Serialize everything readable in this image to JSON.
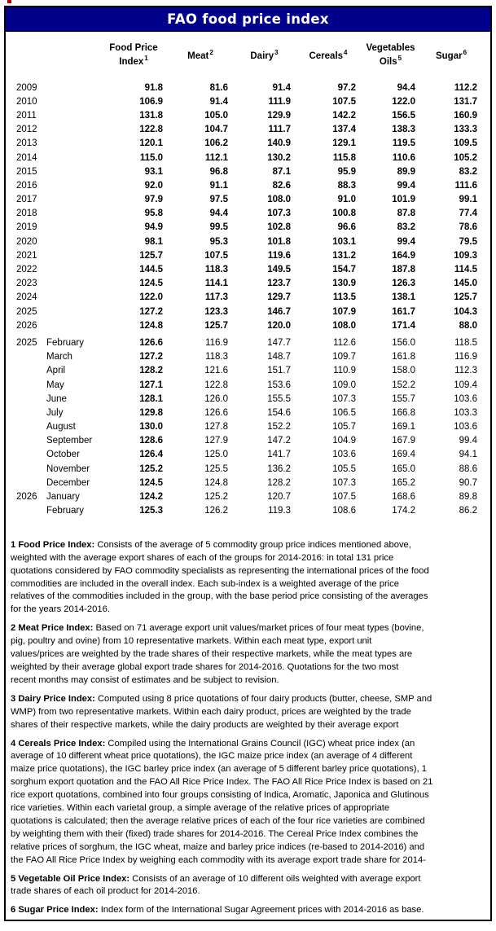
{
  "title": "FAO food price index",
  "accent_color": "#00008b",
  "table": {
    "columns": [
      {
        "label": "Food Price Index",
        "sup": "1"
      },
      {
        "label": "Meat",
        "sup": "2"
      },
      {
        "label": "Dairy",
        "sup": "3"
      },
      {
        "label": "Cereals",
        "sup": "4"
      },
      {
        "label": "Vegetables Oils",
        "sup": "5"
      },
      {
        "label": "Sugar",
        "sup": "6"
      }
    ],
    "annual_rows": [
      {
        "year": "2009",
        "values": [
          "91.8",
          "81.6",
          "91.4",
          "97.2",
          "94.4",
          "112.2"
        ]
      },
      {
        "year": "2010",
        "values": [
          "106.9",
          "91.4",
          "111.9",
          "107.5",
          "122.0",
          "131.7"
        ]
      },
      {
        "year": "2011",
        "values": [
          "131.8",
          "105.0",
          "129.9",
          "142.2",
          "156.5",
          "160.9"
        ]
      },
      {
        "year": "2012",
        "values": [
          "122.8",
          "104.7",
          "111.7",
          "137.4",
          "138.3",
          "133.3"
        ]
      },
      {
        "year": "2013",
        "values": [
          "120.1",
          "106.2",
          "140.9",
          "129.1",
          "119.5",
          "109.5"
        ]
      },
      {
        "year": "2014",
        "values": [
          "115.0",
          "112.1",
          "130.2",
          "115.8",
          "110.6",
          "105.2"
        ]
      },
      {
        "year": "2015",
        "values": [
          "93.1",
          "96.8",
          "87.1",
          "95.9",
          "89.9",
          "83.2"
        ]
      },
      {
        "year": "2016",
        "values": [
          "92.0",
          "91.1",
          "82.6",
          "88.3",
          "99.4",
          "111.6"
        ]
      },
      {
        "year": "2017",
        "values": [
          "97.9",
          "97.5",
          "108.0",
          "91.0",
          "101.9",
          "99.1"
        ]
      },
      {
        "year": "2018",
        "values": [
          "95.8",
          "94.4",
          "107.3",
          "100.8",
          "87.8",
          "77.4"
        ]
      },
      {
        "year": "2019",
        "values": [
          "94.9",
          "99.5",
          "102.8",
          "96.6",
          "83.2",
          "78.6"
        ]
      },
      {
        "year": "2020",
        "values": [
          "98.1",
          "95.3",
          "101.8",
          "103.1",
          "99.4",
          "79.5"
        ]
      },
      {
        "year": "2021",
        "values": [
          "125.7",
          "107.5",
          "119.6",
          "131.2",
          "164.9",
          "109.3"
        ]
      },
      {
        "year": "2022",
        "values": [
          "144.5",
          "118.3",
          "149.5",
          "154.7",
          "187.8",
          "114.5"
        ]
      },
      {
        "year": "2023",
        "values": [
          "124.5",
          "114.1",
          "123.7",
          "130.9",
          "126.3",
          "145.0"
        ]
      },
      {
        "year": "2024",
        "values": [
          "122.0",
          "117.3",
          "129.7",
          "113.5",
          "138.1",
          "125.7"
        ]
      },
      {
        "year": "2025",
        "values": [
          "127.2",
          "123.3",
          "146.7",
          "107.9",
          "161.7",
          "104.3"
        ]
      },
      {
        "year": "2026",
        "values": [
          "124.8",
          "125.7",
          "120.0",
          "108.0",
          "171.4",
          "88.0"
        ]
      }
    ],
    "monthly_rows": [
      {
        "year": "2025",
        "month": "February",
        "values": [
          "126.6",
          "116.9",
          "147.7",
          "112.6",
          "156.0",
          "118.5"
        ]
      },
      {
        "year": "",
        "month": "March",
        "values": [
          "127.2",
          "118.3",
          "148.7",
          "109.7",
          "161.8",
          "116.9"
        ]
      },
      {
        "year": "",
        "month": "April",
        "values": [
          "128.2",
          "121.6",
          "151.7",
          "110.9",
          "158.0",
          "112.3"
        ]
      },
      {
        "year": "",
        "month": "May",
        "values": [
          "127.1",
          "122.8",
          "153.6",
          "109.0",
          "152.2",
          "109.4"
        ]
      },
      {
        "year": "",
        "month": "June",
        "values": [
          "128.1",
          "126.0",
          "155.5",
          "107.3",
          "155.7",
          "103.6"
        ]
      },
      {
        "year": "",
        "month": "July",
        "values": [
          "129.8",
          "126.6",
          "154.6",
          "106.5",
          "166.8",
          "103.3"
        ]
      },
      {
        "year": "",
        "month": "August",
        "values": [
          "130.0",
          "127.8",
          "152.2",
          "105.7",
          "169.1",
          "103.6"
        ]
      },
      {
        "year": "",
        "month": "September",
        "values": [
          "128.6",
          "127.9",
          "147.2",
          "104.9",
          "167.9",
          "99.4"
        ]
      },
      {
        "year": "",
        "month": "October",
        "values": [
          "126.4",
          "125.0",
          "141.7",
          "103.6",
          "169.4",
          "94.1"
        ]
      },
      {
        "year": "",
        "month": "November",
        "values": [
          "125.2",
          "125.5",
          "136.2",
          "105.5",
          "165.0",
          "88.6"
        ]
      },
      {
        "year": "",
        "month": "December",
        "values": [
          "124.5",
          "124.8",
          "128.2",
          "107.3",
          "165.2",
          "90.7"
        ]
      },
      {
        "year": "2026",
        "month": "January",
        "values": [
          "124.2",
          "125.2",
          "120.7",
          "107.5",
          "168.6",
          "89.8"
        ]
      },
      {
        "year": "",
        "month": "February",
        "values": [
          "125.3",
          "126.2",
          "119.3",
          "108.6",
          "174.2",
          "86.2"
        ]
      }
    ]
  },
  "footnotes": [
    {
      "label": "1 Food Price Index:",
      "lines": [
        "Consists of the average of 5 commodity group price indices mentioned above,",
        "weighted with the average export shares of each of the groups for 2014-2016: in total 131 price",
        "quotations considered by FAO commodity specialists as representing the international prices of the food",
        "commodities are included in the overall index. Each sub-index is a weighted average of the price",
        "relatives of the commodities included in the group, with the base period price consisting of the averages",
        "for the years 2014-2016."
      ]
    },
    {
      "label": "2 Meat Price Index:",
      "lines": [
        "Based on 71 average export unit values/market prices of four meat types (bovine,",
        "pig, poultry and ovine) from 10 representative markets. Within each meat type, export unit",
        "values/prices are weighted by the trade shares of their respective markets, while the meat types are",
        "weighted by their average global export trade shares for 2014-2016. Quotations for the two most",
        "recent months may consist of estimates and be subject to revision."
      ]
    },
    {
      "label": "3 Dairy Price Index:",
      "lines": [
        "Computed using 8 price quotations of four dairy products (butter, cheese, SMP and",
        "WMP) from two representative markets. Within each dairy product, prices are weighted by the trade",
        "shares of their respective markets, while the dairy products are weighted by their average export"
      ]
    },
    {
      "label": "4 Cereals Price Index:",
      "lines": [
        "Compiled using the International Grains Council (IGC) wheat price index (an",
        "average of 10 different wheat price quotations), the IGC maize price index (an average of 4 different",
        "maize price quotations), the IGC barley price index (an average of 5 different barley price quotations), 1",
        "sorghum export quotation and the FAO All Rice Price Index. The FAO All Rice Price Index is based on 21",
        "rice export quotations, combined into four groups consisting of Indica, Aromatic, Japonica and Glutinous",
        "rice varieties. Within each varietal group, a simple average of the relative prices of appropriate",
        "quotations is calculated; then the average relative prices of each of the four rice varieties are combined",
        "by weighting them with their (fixed) trade shares for 2014-2016. The Cereal Price Index combines the",
        "relative prices of sorghum, the IGC wheat, maize and barley price indices (re-based to 2014-2016) and",
        "the FAO All Rice Price Index by weighing each commodity with its average export trade share for 2014-"
      ]
    },
    {
      "label": "5 Vegetable Oil Price Index:",
      "lines": [
        "Consists of an average of 10 different oils weighted with average export",
        "trade shares of each oil product for 2014-2016."
      ]
    },
    {
      "label": "6 Sugar Price Index:",
      "lines": [
        "Index form of the International Sugar Agreement prices with 2014-2016 as base."
      ]
    }
  ]
}
